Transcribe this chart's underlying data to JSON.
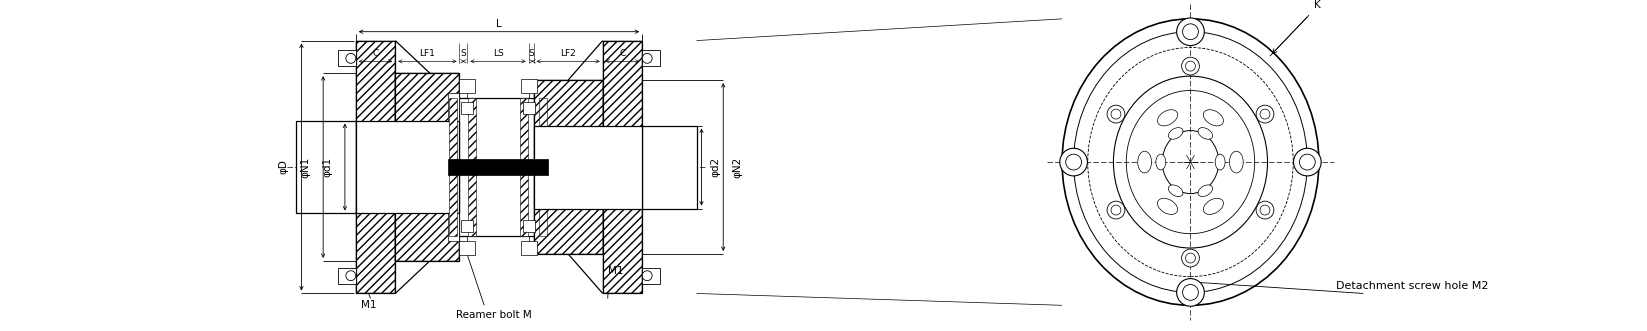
{
  "bg_color": "#ffffff",
  "line_color": "#000000",
  "fig_width": 16.47,
  "fig_height": 3.31,
  "dpi": 100,
  "labels": {
    "L": "L",
    "C": "C",
    "LF1": "LF1",
    "S": "S",
    "LS": "LS",
    "LF2": "LF2",
    "K": "K",
    "phiD": "φD",
    "phiN1": "φN1",
    "phid1": "φd1",
    "phid2": "φd2",
    "phiN2": "φN2",
    "M1": "M1",
    "reamer_bolt": "Reamer bolt M",
    "detach_screw": "Detachment screw hole M2"
  }
}
